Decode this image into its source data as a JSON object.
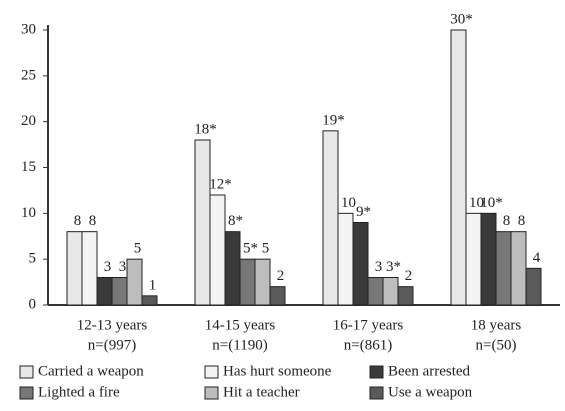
{
  "chart_data": {
    "type": "bar",
    "categories": [
      "12-13 years",
      "14-15 years",
      "16-17 years",
      "18 years"
    ],
    "sample_sizes": [
      "n=(997)",
      "n=(1190)",
      "n=(861)",
      "n=(50)"
    ],
    "ylim": [
      0,
      30
    ],
    "yticks": [
      0,
      5,
      10,
      15,
      20,
      25,
      30
    ],
    "series": [
      {
        "name": "Carried a weapon",
        "color": "#e8e8e8",
        "values": [
          8,
          18,
          19,
          30
        ],
        "value_labels": [
          "8",
          "18*",
          "19*",
          "30*"
        ]
      },
      {
        "name": "Has hurt someone",
        "color": "#f4f4f4",
        "values": [
          8,
          12,
          10,
          10
        ],
        "value_labels": [
          "8",
          "12*",
          "10",
          "10"
        ]
      },
      {
        "name": "Been arrested",
        "color": "#3a3a3a",
        "values": [
          3,
          8,
          9,
          10
        ],
        "value_labels": [
          "3",
          "8*",
          "9*",
          "10*"
        ]
      },
      {
        "name": "Lighted a fire",
        "color": "#777777",
        "values": [
          3,
          5,
          3,
          8
        ],
        "value_labels": [
          "3",
          "5*",
          "3",
          "8"
        ]
      },
      {
        "name": "Hit a teacher",
        "color": "#bdbdbd",
        "values": [
          5,
          5,
          3,
          8
        ],
        "value_labels": [
          "5",
          "5",
          "3*",
          "8"
        ]
      },
      {
        "name": "Use a weapon",
        "color": "#5a5a5a",
        "values": [
          1,
          2,
          2,
          4
        ],
        "value_labels": [
          "1",
          "2",
          "2",
          "4"
        ]
      }
    ]
  }
}
